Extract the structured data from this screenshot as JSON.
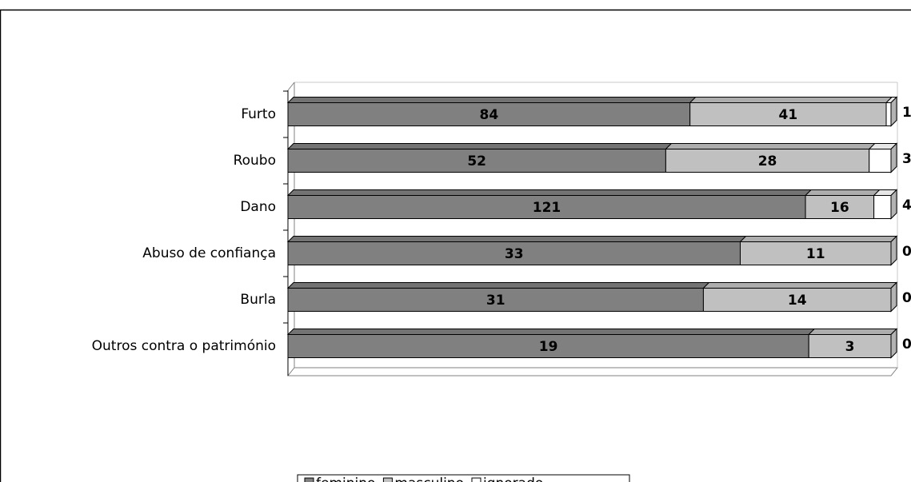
{
  "chart_data": {
    "type": "bar",
    "orientation": "horizontal",
    "stacking": "percent",
    "categories": [
      "Furto",
      "Roubo",
      "Dano",
      "Abuso de confiança",
      "Burla",
      "Outros contra o património"
    ],
    "series": [
      {
        "name": "feminino",
        "color": "#808080",
        "values": [
          84,
          52,
          121,
          33,
          31,
          19
        ]
      },
      {
        "name": "masculino",
        "color": "#c0c0c0",
        "values": [
          41,
          28,
          16,
          11,
          14,
          3
        ]
      },
      {
        "name": "ignorado",
        "color": "#ffffff",
        "values": [
          1,
          3,
          4,
          0,
          0,
          0
        ]
      }
    ],
    "legend": "bottom"
  }
}
